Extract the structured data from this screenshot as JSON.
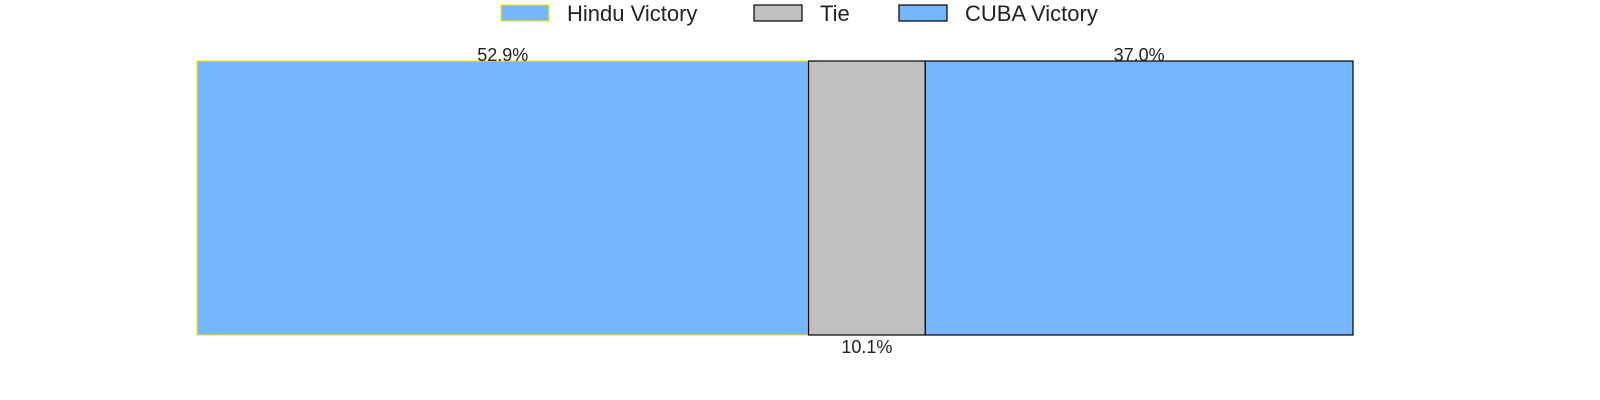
{
  "chart_data": {
    "type": "bar",
    "orientation": "horizontal-stacked",
    "total": 100,
    "legend_placement": "top-center",
    "grid": false,
    "series": [
      {
        "name": "Hindu Victory",
        "value": 52.9,
        "label": "52.9%",
        "label_position": "above",
        "color": "#77b5fe",
        "edge_color": "#f2e600"
      },
      {
        "name": "Tie",
        "value": 10.1,
        "label": "10.1%",
        "label_position": "below",
        "color": "#c0c0c0",
        "edge_color": "#000000"
      },
      {
        "name": "CUBA Victory",
        "value": 37.0,
        "label": "37.0%",
        "label_position": "above",
        "color": "#77b5fe",
        "edge_color": "#000000"
      }
    ]
  }
}
